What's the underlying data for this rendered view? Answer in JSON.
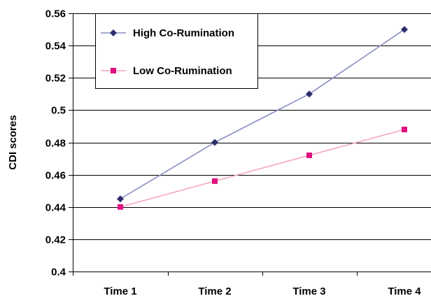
{
  "chart_data": {
    "type": "line",
    "ylabel": "CDI scores",
    "xlabel": "",
    "categories": [
      "Time 1",
      "Time 2",
      "Time 3",
      "Time 4"
    ],
    "ylim": [
      0.4,
      0.56
    ],
    "yticks": [
      "0.4",
      "0.42",
      "0.44",
      "0.46",
      "0.48",
      "0.5",
      "0.52",
      "0.54",
      "0.56"
    ],
    "grid": true,
    "legend_position": "top-left",
    "series": [
      {
        "name": "High Co-Rumination",
        "values": [
          0.445,
          0.48,
          0.51,
          0.55
        ],
        "line_color": "#8a8fc4",
        "marker_color": "#2e2e6e",
        "marker": "diamond"
      },
      {
        "name": "Low Co-Rumination",
        "values": [
          0.44,
          0.456,
          0.472,
          0.488
        ],
        "line_color": "#f4a6c0",
        "marker_color": "#e0107e",
        "marker": "square"
      }
    ]
  }
}
